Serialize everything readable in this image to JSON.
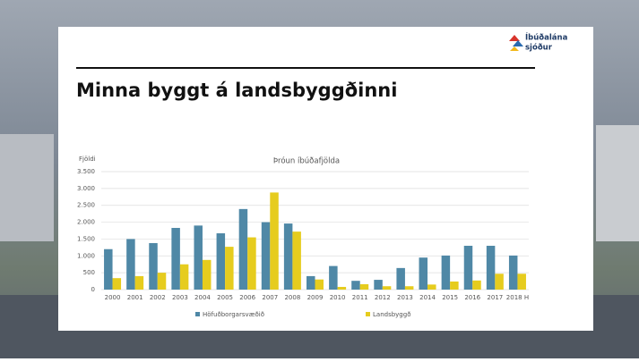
{
  "slide": {
    "title": "Minna byggt á landsbyggðinni",
    "logo": [
      "Íbúðalána",
      "sjóður"
    ]
  },
  "chart_data": {
    "type": "bar",
    "title": "Þróun íbúðafjölda",
    "y_label": "Fjöldi",
    "categories": [
      "2000",
      "2001",
      "2002",
      "2003",
      "2004",
      "2005",
      "2006",
      "2007",
      "2008",
      "2009",
      "2010",
      "2011",
      "2012",
      "2013",
      "2014",
      "2015",
      "2016",
      "2017",
      "2018 H"
    ],
    "series": [
      {
        "name": "Höfuðborgarsvæðið",
        "color": "#4f88a6",
        "values": [
          1200,
          1500,
          1380,
          1830,
          1900,
          1670,
          2390,
          2000,
          1960,
          400,
          700,
          260,
          290,
          640,
          950,
          1010,
          1300,
          1300,
          1010
        ]
      },
      {
        "name": "Landsbyggð",
        "color": "#e6cc1e",
        "values": [
          340,
          400,
          500,
          750,
          880,
          1270,
          1550,
          2880,
          1720,
          300,
          80,
          160,
          100,
          100,
          150,
          240,
          270,
          470,
          470
        ]
      }
    ],
    "ylim": [
      0,
      3500
    ],
    "yticks": [
      0,
      {
        "value": 500,
        "label": "500"
      },
      {
        "value": 1000,
        "label": "1.000"
      },
      {
        "value": 1500,
        "label": "1.500"
      },
      {
        "value": 2000,
        "label": "2.000"
      },
      {
        "value": 2500,
        "label": "2.500"
      },
      {
        "value": 3000,
        "label": "3.000"
      },
      {
        "value": 3500,
        "label": "3.500"
      }
    ],
    "grid": true,
    "legend": "bottom"
  }
}
